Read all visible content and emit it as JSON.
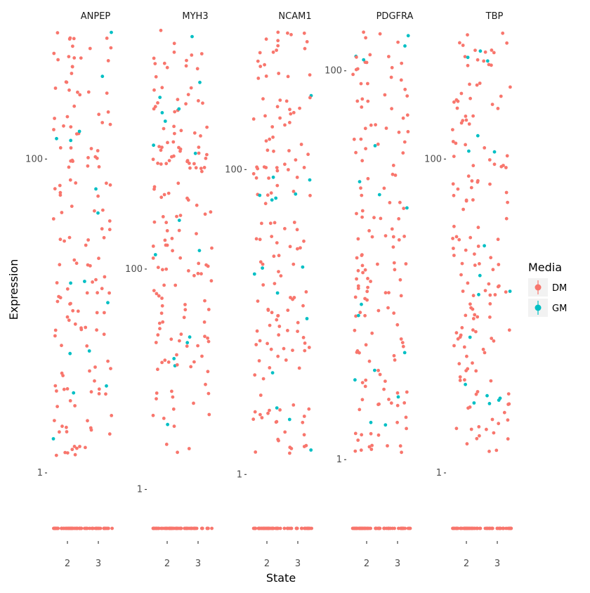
{
  "chart_data": {
    "type": "scatter",
    "xlabel": "State",
    "ylabel": "Expression",
    "x_categories": [
      "2",
      "3"
    ],
    "y_scale": "log10(1+x), free per panel",
    "legend": {
      "title": "Media",
      "placement": "right",
      "entries": [
        {
          "name": "DM",
          "color": "#F8766D"
        },
        {
          "name": "GM",
          "color": "#00BFC4"
        }
      ]
    },
    "panels": [
      {
        "name": "ANPEP",
        "ymax": 500,
        "yticks": [
          {
            "value": 1,
            "label": "1"
          },
          {
            "value": 100,
            "label": "100"
          }
        ]
      },
      {
        "name": "MYH3",
        "ymax": 7000,
        "yticks": [
          {
            "value": 1,
            "label": "1"
          },
          {
            "value": 100,
            "label": "100"
          }
        ]
      },
      {
        "name": "NCAM1",
        "ymax": 600,
        "yticks": [
          {
            "value": 1,
            "label": "1"
          },
          {
            "value": 100,
            "label": "100"
          }
        ]
      },
      {
        "name": "PDGFRA",
        "ymax": 150,
        "yticks": [
          {
            "value": 1,
            "label": "1"
          },
          {
            "value": 100,
            "label": "100"
          }
        ]
      },
      {
        "name": "TBP",
        "ymax": 500,
        "yticks": [
          {
            "value": 1,
            "label": "1"
          },
          {
            "value": 100,
            "label": "100"
          }
        ]
      }
    ]
  }
}
